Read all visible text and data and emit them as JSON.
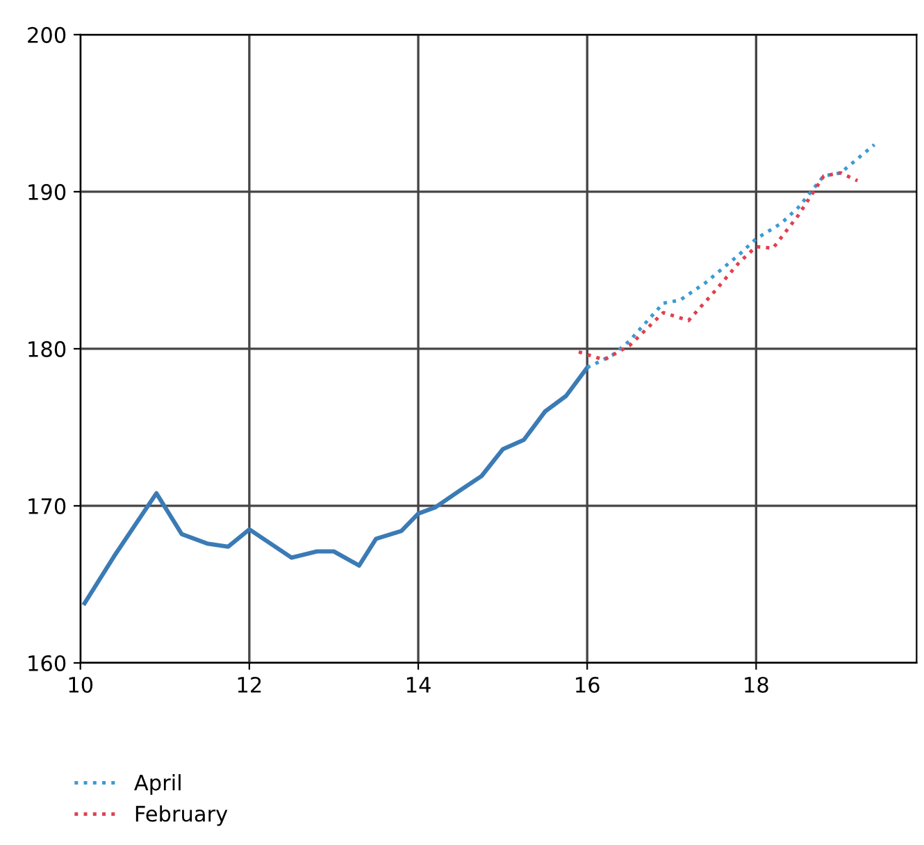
{
  "chart_data": {
    "type": "line",
    "xlim": [
      10,
      19.9
    ],
    "ylim": [
      160,
      200
    ],
    "xticks": [
      10,
      12,
      14,
      16,
      18
    ],
    "yticks": [
      160,
      170,
      180,
      190,
      200
    ],
    "grid": true,
    "legend": "bottom left",
    "series": [
      {
        "color": "#3b7bb5",
        "line_style": "solid",
        "x": [
          10.05,
          10.4,
          10.9,
          11.2,
          11.5,
          11.75,
          12.0,
          12.5,
          12.8,
          13.0,
          13.3,
          13.5,
          13.8,
          14.0,
          14.2,
          14.5,
          14.75,
          15.0,
          15.25,
          15.5,
          15.75,
          16.0
        ],
        "values": [
          163.8,
          166.8,
          170.8,
          168.2,
          167.6,
          167.4,
          168.5,
          166.7,
          167.1,
          167.1,
          166.2,
          167.9,
          168.4,
          169.5,
          169.9,
          171.0,
          171.9,
          173.6,
          174.2,
          176.0,
          177.0,
          178.8
        ]
      },
      {
        "name": "April",
        "color": "#3b9ad6",
        "line_style": "dotted",
        "x": [
          16.0,
          16.3,
          16.5,
          16.9,
          17.1,
          17.4,
          17.8,
          18.0,
          18.3,
          18.5,
          18.8,
          19.0,
          19.4
        ],
        "values": [
          178.8,
          179.6,
          180.5,
          182.9,
          183.1,
          184.2,
          186.0,
          187.0,
          188.0,
          189.0,
          191.0,
          191.2,
          193.0
        ]
      },
      {
        "name": "February",
        "color": "#e04050",
        "line_style": "dotted",
        "x": [
          15.9,
          16.2,
          16.5,
          16.9,
          17.2,
          17.5,
          17.8,
          18.0,
          18.2,
          18.5,
          18.8,
          19.0,
          19.2
        ],
        "values": [
          179.8,
          179.3,
          180.2,
          182.3,
          181.8,
          183.6,
          185.5,
          186.5,
          186.4,
          188.5,
          191.0,
          191.2,
          190.7
        ]
      }
    ]
  }
}
